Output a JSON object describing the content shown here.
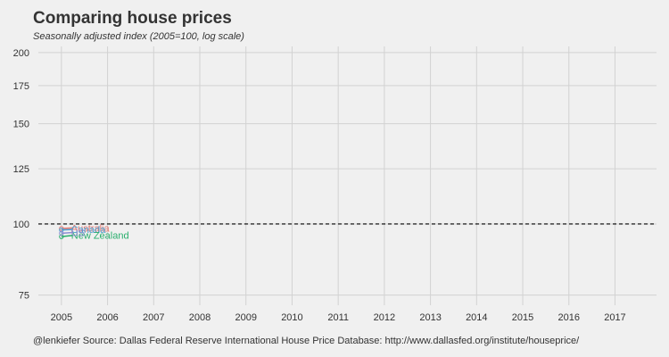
{
  "title": "Comparing house prices",
  "subtitle": "Seasonally adjusted index (2005=100, log scale)",
  "caption": "@lenkiefer Source: Dallas Federal Reserve International House Price Database: http://www.dallasfed.org/institute/houseprice/",
  "chart_data": {
    "type": "line",
    "x_ticks": [
      2005,
      2006,
      2007,
      2008,
      2009,
      2010,
      2011,
      2012,
      2013,
      2014,
      2015,
      2016,
      2017
    ],
    "y_ticks": [
      75,
      100,
      125,
      150,
      175,
      200
    ],
    "xlim": [
      2004.5,
      2017.9
    ],
    "ylim": [
      72,
      205
    ],
    "y_scale": "log",
    "reference_line": 100,
    "grid": true,
    "series": [
      {
        "name": "Australia",
        "color": "#e8766f",
        "x": [
          2005.0,
          2005.25
        ],
        "y": [
          98.2,
          98.4
        ]
      },
      {
        "name": "Canada",
        "color": "#4a9fd0",
        "x": [
          2005.0,
          2005.25
        ],
        "y": [
          97.6,
          97.8
        ]
      },
      {
        "name": "New Zealand",
        "color": "#28ae6c",
        "x": [
          2005.0,
          2005.25
        ],
        "y": [
          95.0,
          95.5
        ]
      },
      {
        "name": "US",
        "color": "#8c8fd2",
        "x": [
          2005.0,
          2005.25
        ],
        "y": [
          96.3,
          96.6
        ]
      }
    ]
  }
}
